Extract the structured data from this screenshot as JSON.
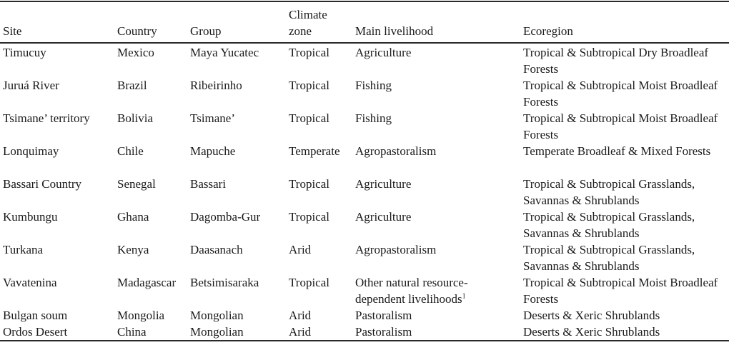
{
  "table": {
    "headers": {
      "site": "Site",
      "country": "Country",
      "group": "Group",
      "climate_zone": "Climate zone",
      "main_livelihood": "Main livelihood",
      "ecoregion": "Ecoregion"
    },
    "rows": [
      {
        "site": "Timucuy",
        "country": "Mexico",
        "group": "Maya Yucatec",
        "climate_zone": "Tropical",
        "main_livelihood": "Agriculture",
        "main_livelihood_note": "",
        "ecoregion": "Tropical & Subtropical Dry Broadleaf Forests"
      },
      {
        "site": "Juruá River",
        "country": "Brazil",
        "group": "Ribeirinho",
        "climate_zone": "Tropical",
        "main_livelihood": "Fishing",
        "main_livelihood_note": "",
        "ecoregion": "Tropical & Subtropical Moist Broadleaf Forests"
      },
      {
        "site": "Tsimane’ territory",
        "country": "Bolivia",
        "group": "Tsimane’",
        "climate_zone": "Tropical",
        "main_livelihood": "Fishing",
        "main_livelihood_note": "",
        "ecoregion": "Tropical & Subtropical Moist Broadleaf Forests"
      },
      {
        "site": "Lonquimay",
        "country": "Chile",
        "group": "Mapuche",
        "climate_zone": "Temperate",
        "main_livelihood": "Agropastoralism",
        "main_livelihood_note": "",
        "ecoregion": "Temperate Broadleaf & Mixed Forests"
      },
      {
        "site": "Bassari Country",
        "country": "Senegal",
        "group": "Bassari",
        "climate_zone": "Tropical",
        "main_livelihood": "Agriculture",
        "main_livelihood_note": "",
        "ecoregion": "Tropical & Subtropical Grasslands, Savannas & Shrublands"
      },
      {
        "site": "Kumbungu",
        "country": "Ghana",
        "group": "Dagomba-Gur",
        "climate_zone": "Tropical",
        "main_livelihood": "Agriculture",
        "main_livelihood_note": "",
        "ecoregion": "Tropical & Subtropical Grasslands, Savannas & Shrublands"
      },
      {
        "site": "Turkana",
        "country": "Kenya",
        "group": "Daasanach",
        "climate_zone": "Arid",
        "main_livelihood": "Agropastoralism",
        "main_livelihood_note": "",
        "ecoregion": "Tropical & Subtropical Grasslands, Savannas & Shrublands"
      },
      {
        "site": "Vavatenina",
        "country": "Madagascar",
        "group": "Betsimisaraka",
        "climate_zone": "Tropical",
        "main_livelihood": "Other natural resource-dependent livelihoods",
        "main_livelihood_note": "1",
        "ecoregion": "Tropical & Subtropical Moist Broadleaf Forests"
      },
      {
        "site": "Bulgan soum",
        "country": "Mongolia",
        "group": "Mongolian",
        "climate_zone": "Arid",
        "main_livelihood": "Pastoralism",
        "main_livelihood_note": "",
        "ecoregion": "Deserts & Xeric Shrublands"
      },
      {
        "site": "Ordos Desert",
        "country": "China",
        "group": "Mongolian",
        "climate_zone": "Arid",
        "main_livelihood": "Pastoralism",
        "main_livelihood_note": "",
        "ecoregion": "Deserts & Xeric Shrublands"
      }
    ]
  }
}
